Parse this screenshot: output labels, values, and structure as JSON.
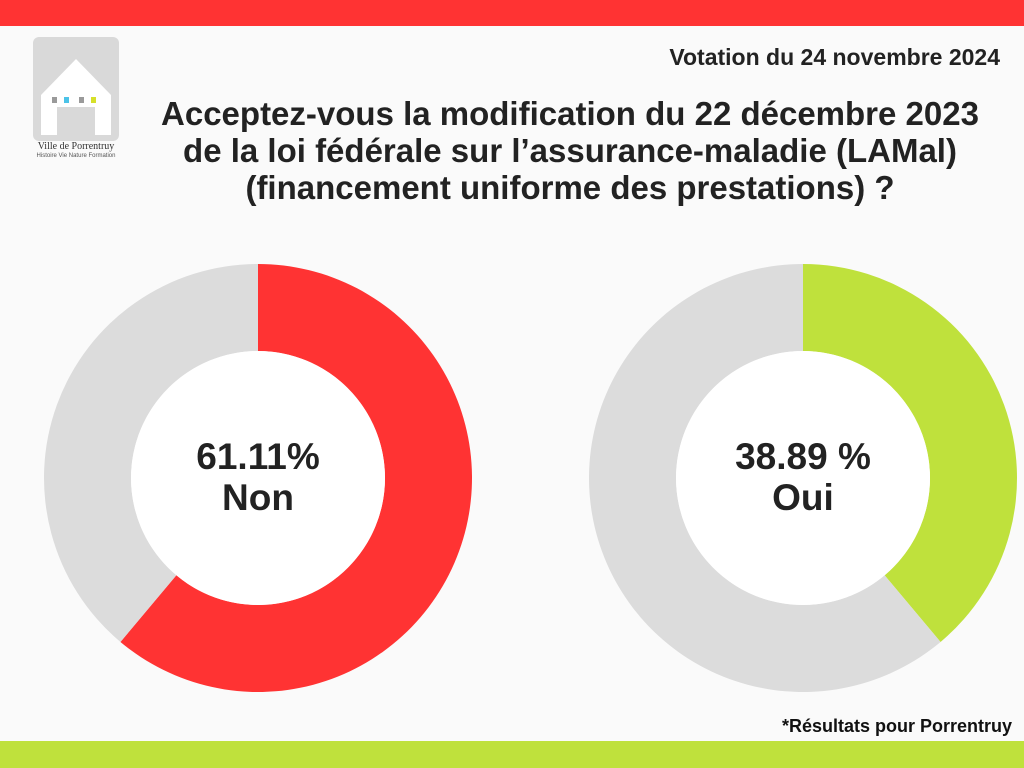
{
  "colors": {
    "top_bar": "#ff3333",
    "bottom_bar": "#bfe13c",
    "non": "#ff3333",
    "oui": "#bfe13c",
    "remainder": "#dcdcdc",
    "background": "#fafafa"
  },
  "logo": {
    "name": "Ville de Porrentruy",
    "tagline": "Histoire Vie Nature Formation",
    "icon": "house-icon"
  },
  "header": {
    "date": "Votation du 24 novembre 2024",
    "question": "Acceptez-vous la modification du 22 décembre 2023 de la loi fédérale sur l’assurance-maladie (LAMal) (financement uniforme des prestations) ?"
  },
  "chart_data": [
    {
      "type": "pie",
      "donut": true,
      "label_value": "61.11%",
      "label_answer": "Non",
      "slices": [
        {
          "label": "Non",
          "value": 61.11,
          "color": "#ff3333"
        },
        {
          "label": "",
          "value": 38.89,
          "color": "#dcdcdc"
        }
      ]
    },
    {
      "type": "pie",
      "donut": true,
      "label_value": "38.89 %",
      "label_answer": "Oui",
      "slices": [
        {
          "label": "Oui",
          "value": 38.89,
          "color": "#bfe13c"
        },
        {
          "label": "",
          "value": 61.11,
          "color": "#dcdcdc"
        }
      ]
    }
  ],
  "footnote": "*Résultats pour Porrentruy"
}
